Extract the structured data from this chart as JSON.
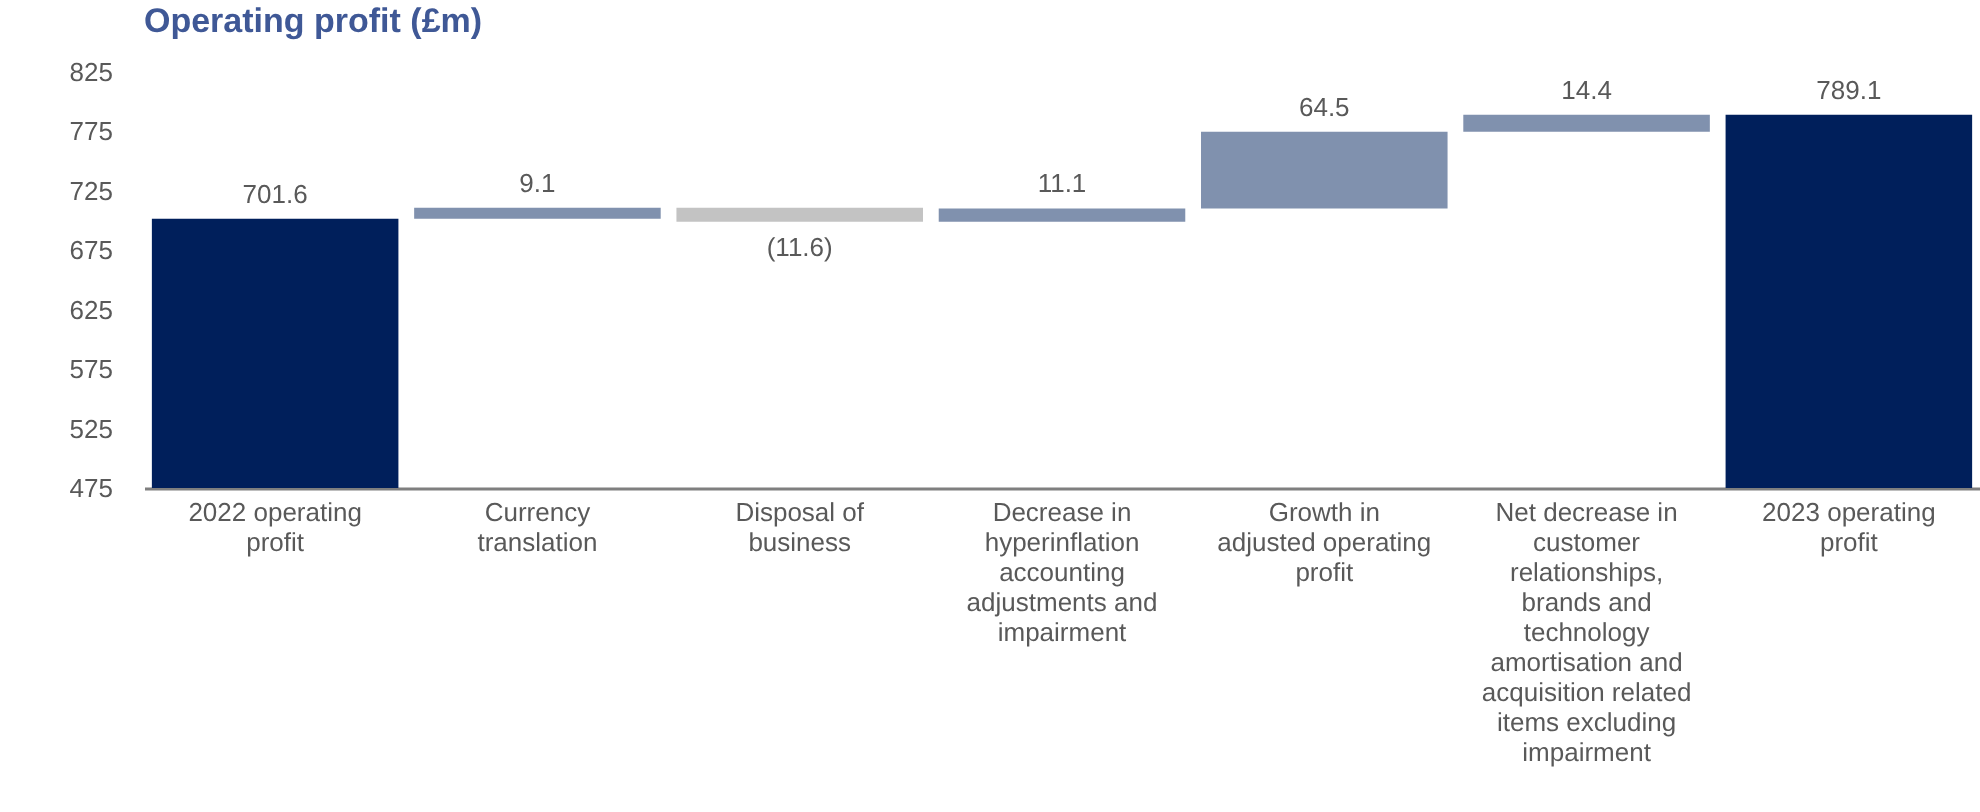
{
  "chart_data": {
    "type": "bar",
    "title": "Operating profit (£m)",
    "categories": [
      "2022 operating profit",
      "Currency translation",
      "Disposal of business",
      "Decrease in hyperinflation accounting adjustments and impairment",
      "Growth in adjusted operating profit",
      "Net decrease in customer relationships, brands  and technology amortisation and acquisition related items excluding impairment",
      "2023 operating profit"
    ],
    "values": [
      701.6,
      9.1,
      -11.6,
      11.1,
      64.5,
      14.4,
      789.1
    ],
    "base": [
      null,
      701.6,
      710.7,
      699.1,
      710.2,
      774.7,
      null
    ],
    "colors": [
      "#001f5b",
      "#8091ae",
      "#c3c3c3",
      "#8091ae",
      "#8091ae",
      "#8091ae",
      "#001f5b"
    ],
    "value_labels": [
      "701.6",
      "9.1",
      "(11.6)",
      "11.1",
      "64.5",
      "14.4",
      "789.1"
    ],
    "ylim": [
      475,
      825
    ],
    "yticks": [
      475,
      525,
      575,
      625,
      675,
      725,
      775,
      825
    ]
  }
}
